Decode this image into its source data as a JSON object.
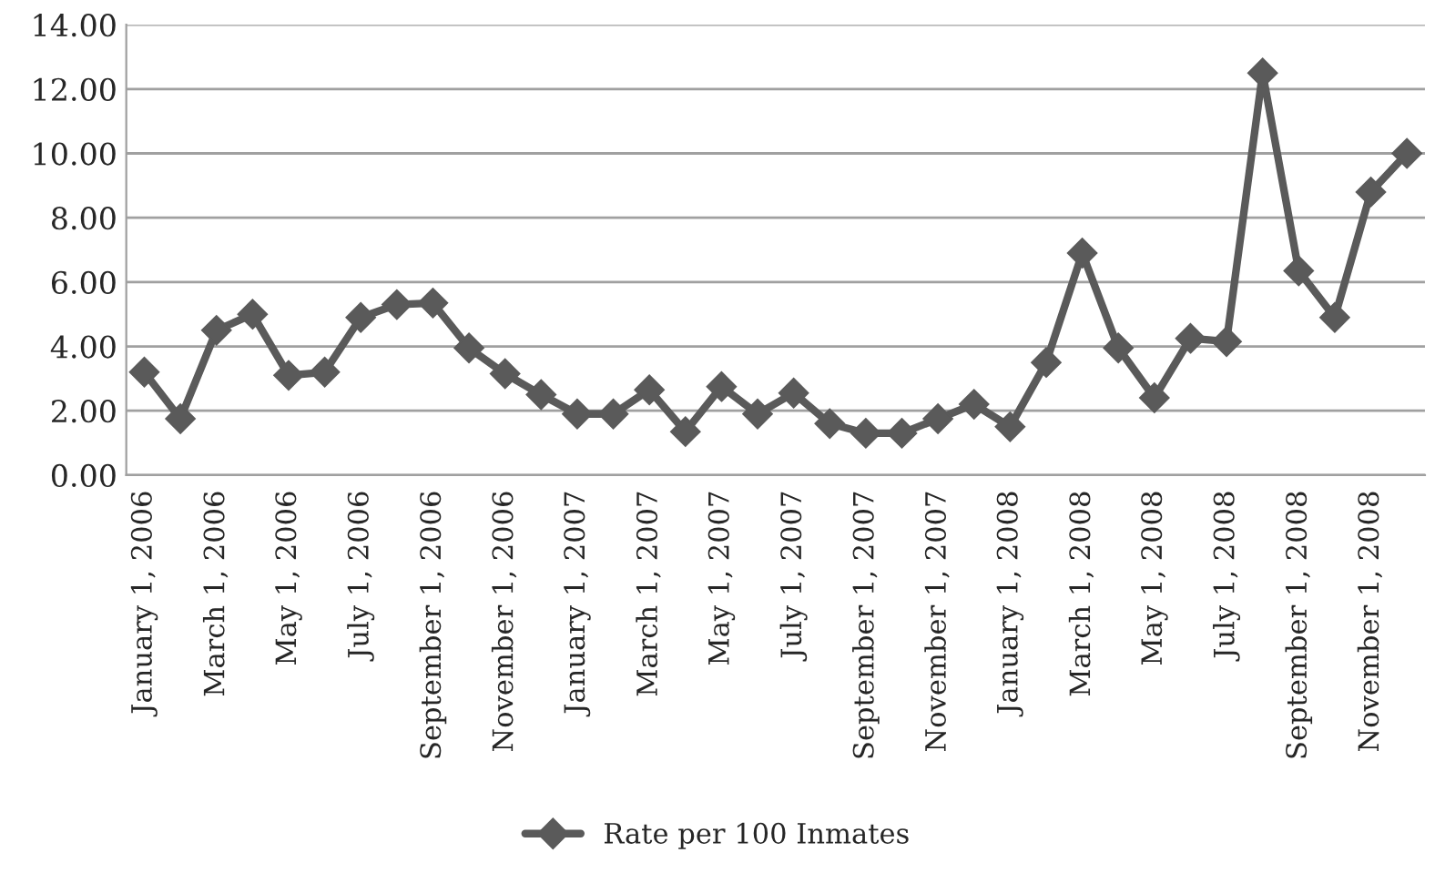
{
  "chart_data": {
    "type": "line",
    "categories": [
      "January 1, 2006",
      null,
      "March 1, 2006",
      null,
      "May 1, 2006",
      null,
      "July 1, 2006",
      null,
      "September 1, 2006",
      null,
      "November 1, 2006",
      null,
      "January 1, 2007",
      null,
      "March 1, 2007",
      null,
      "May 1, 2007",
      null,
      "July 1, 2007",
      null,
      "September 1, 2007",
      null,
      "November 1, 2007",
      null,
      "January 1, 2008",
      null,
      "March 1, 2008",
      null,
      "May 1, 2008",
      null,
      "July 1, 2008",
      null,
      "September 1, 2008",
      null,
      "November 1, 2008",
      null
    ],
    "series": [
      {
        "name": "Rate per 100 Inmates",
        "color": "#5a5a5a",
        "values": [
          3.2,
          1.75,
          4.5,
          5.0,
          3.1,
          3.2,
          4.9,
          5.3,
          5.35,
          3.95,
          3.15,
          2.5,
          1.9,
          1.9,
          2.65,
          1.35,
          2.75,
          1.9,
          2.55,
          1.6,
          1.3,
          1.3,
          1.75,
          2.2,
          1.5,
          3.5,
          6.9,
          3.95,
          2.4,
          4.25,
          4.15,
          12.5,
          6.35,
          4.9,
          8.8,
          10.0
        ]
      }
    ],
    "ylim": [
      0,
      14
    ],
    "yticks": [
      {
        "value": 0,
        "label": "0.00"
      },
      {
        "value": 2,
        "label": "2.00"
      },
      {
        "value": 4,
        "label": "4.00"
      },
      {
        "value": 6,
        "label": "6.00"
      },
      {
        "value": 8,
        "label": "8.00"
      },
      {
        "value": 10,
        "label": "10.00"
      },
      {
        "value": 12,
        "label": "12.00"
      },
      {
        "value": 14,
        "label": "14.00"
      }
    ],
    "grid": "y",
    "legend": "bottom",
    "marker": "diamond",
    "line_style": "solid"
  }
}
